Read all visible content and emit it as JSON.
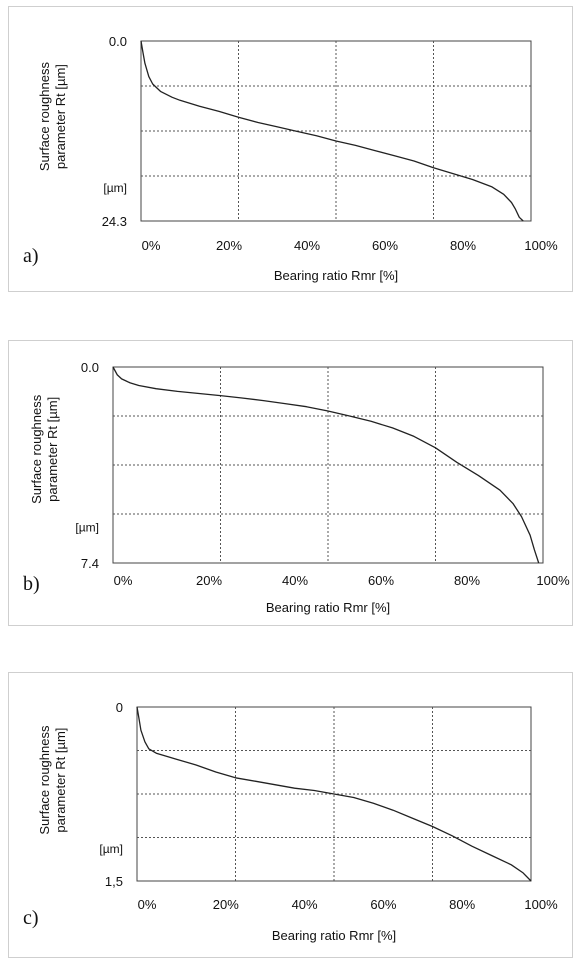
{
  "chart_data": [
    {
      "type": "line",
      "panel_label": "a)",
      "ylabel": "Surface roughness parameter Rt [µm]",
      "ylabel_lines": [
        "Surface roughness",
        "parameter Rt [µm]"
      ],
      "y_unit_label": "[µm]",
      "xlabel": "Bearing ratio Rmr [%]",
      "y_tick_labels": [
        "0.0",
        "24.3"
      ],
      "x_tick_labels": [
        "0%",
        "20%",
        "40%",
        "60%",
        "80%",
        "100%"
      ],
      "xlim": [
        0,
        100
      ],
      "ylim": [
        0,
        24.3
      ],
      "y_inverted": true,
      "grid": true,
      "series": [
        {
          "x": [
            0,
            0.5,
            1,
            2,
            3,
            5,
            8,
            10,
            15,
            20,
            25,
            30,
            35,
            40,
            45,
            50,
            55,
            60,
            65,
            70,
            75,
            80,
            85,
            90,
            93,
            95,
            96,
            97,
            98
          ],
          "y": [
            0,
            1.5,
            3.0,
            4.8,
            5.8,
            6.8,
            7.6,
            8.0,
            8.8,
            9.5,
            10.3,
            11.0,
            11.6,
            12.2,
            12.8,
            13.5,
            14.1,
            14.8,
            15.5,
            16.2,
            17.1,
            17.9,
            18.7,
            19.7,
            20.7,
            21.8,
            22.7,
            23.8,
            24.3
          ]
        }
      ]
    },
    {
      "type": "line",
      "panel_label": "b)",
      "ylabel": "Surface roughness parameter Rt [µm]",
      "ylabel_lines": [
        "Surface roughness",
        "parameter Rt [µm]"
      ],
      "y_unit_label": "[µm]",
      "xlabel": "Bearing ratio Rmr [%]",
      "y_tick_labels": [
        "0.0",
        "7.4"
      ],
      "x_tick_labels": [
        "0%",
        "20%",
        "40%",
        "60%",
        "80%",
        "100%"
      ],
      "xlim": [
        0,
        100
      ],
      "ylim": [
        0,
        7.4
      ],
      "y_inverted": true,
      "grid": true,
      "series": [
        {
          "x": [
            0,
            0.5,
            1,
            2,
            4,
            6,
            10,
            15,
            20,
            25,
            30,
            35,
            40,
            45,
            50,
            55,
            60,
            65,
            70,
            75,
            80,
            85,
            90,
            93,
            95,
            97,
            98,
            99
          ],
          "y": [
            0,
            0.15,
            0.3,
            0.45,
            0.6,
            0.7,
            0.82,
            0.92,
            1.0,
            1.08,
            1.17,
            1.27,
            1.38,
            1.5,
            1.66,
            1.85,
            2.05,
            2.3,
            2.62,
            3.05,
            3.6,
            4.1,
            4.65,
            5.15,
            5.65,
            6.35,
            6.9,
            7.4
          ]
        }
      ]
    },
    {
      "type": "line",
      "panel_label": "c)",
      "ylabel": "Surface roughness parameter Rt [µm]",
      "ylabel_lines": [
        "Surface roughness",
        "parameter Rt [µm]"
      ],
      "y_unit_label": "[µm]",
      "xlabel": "Bearing ratio Rmr [%]",
      "y_tick_labels": [
        "0",
        "1,5"
      ],
      "x_tick_labels": [
        "0%",
        "20%",
        "40%",
        "60%",
        "80%",
        "100%"
      ],
      "xlim": [
        0,
        100
      ],
      "ylim": [
        0,
        1.5
      ],
      "y_inverted": true,
      "grid": true,
      "series": [
        {
          "x": [
            0,
            0.5,
            1,
            2,
            3,
            5,
            8,
            10,
            15,
            20,
            25,
            30,
            35,
            40,
            45,
            50,
            55,
            60,
            65,
            70,
            75,
            80,
            85,
            90,
            95,
            98,
            100
          ],
          "y": [
            0,
            0.1,
            0.2,
            0.3,
            0.36,
            0.4,
            0.43,
            0.45,
            0.5,
            0.56,
            0.61,
            0.64,
            0.67,
            0.7,
            0.72,
            0.75,
            0.78,
            0.83,
            0.89,
            0.96,
            1.03,
            1.11,
            1.2,
            1.28,
            1.36,
            1.43,
            1.5
          ]
        }
      ]
    }
  ]
}
